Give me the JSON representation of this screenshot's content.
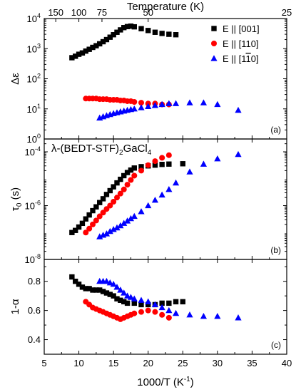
{
  "chart_data": {
    "type": "scatter",
    "x_axis": {
      "label_main": "1000/T (K",
      "label_sup": "-1",
      "label_end": ")",
      "range": [
        5,
        40
      ],
      "ticks": [
        5,
        10,
        15,
        20,
        25,
        30,
        35,
        40
      ],
      "tick_labels": [
        "5",
        "10",
        "15",
        "20",
        "25",
        "30",
        "35",
        "40"
      ]
    },
    "top_axis": {
      "label": "Temperature (K)",
      "ticks_T": [
        150,
        100,
        75,
        50,
        25
      ],
      "tick_labels": [
        "150",
        "100",
        "75",
        "50",
        "25"
      ]
    },
    "legend": {
      "placement": "top-right of panel (a)",
      "entries": [
        {
          "key": "s001",
          "prefix": "E || [001]",
          "suffix": ""
        },
        {
          "key": "s110",
          "prefix": "E || [110]",
          "suffix": ""
        },
        {
          "key": "s1m10",
          "prefix": "E || [1",
          "bar": "1",
          "suffix": "0]"
        }
      ]
    },
    "series_style": {
      "s001": {
        "color": "#000000",
        "marker": "square"
      },
      "s110": {
        "color": "#ff0000",
        "marker": "circle"
      },
      "s1m10": {
        "color": "#0000ff",
        "marker": "triangle"
      }
    },
    "panels": [
      {
        "id": "a",
        "panel_label": "(a)",
        "y_label": "Δε",
        "y_scale": "log",
        "y_range": [
          1,
          10000
        ],
        "y_ticks": [
          1,
          10,
          100,
          1000,
          10000
        ],
        "y_tick_labels": [
          {
            "b": "10",
            "e": "0"
          },
          {
            "b": "10",
            "e": "1"
          },
          {
            "b": "10",
            "e": "2"
          },
          {
            "b": "10",
            "e": "3"
          },
          {
            "b": "10",
            "e": "4"
          }
        ],
        "series": {
          "s001": {
            "x": [
              9,
              9.5,
              10,
              10.5,
              11,
              11.5,
              12,
              12.5,
              13,
              13.5,
              14,
              14.5,
              15,
              15.5,
              16,
              16.5,
              17,
              17.5,
              18,
              19,
              20,
              21,
              22,
              23,
              24
            ],
            "y": [
              500,
              560,
              650,
              720,
              830,
              950,
              1100,
              1250,
              1450,
              1700,
              2000,
              2400,
              2900,
              3500,
              4200,
              5000,
              5400,
              5600,
              5300,
              4600,
              4000,
              3500,
              3200,
              3000,
              2900
            ]
          },
          "s110": {
            "x": [
              11,
              11.5,
              12,
              12.5,
              13,
              13.5,
              14,
              14.5,
              15,
              15.5,
              16,
              16.5,
              17,
              17.5,
              18,
              19,
              20,
              21,
              22,
              23
            ],
            "y": [
              22,
              22,
              22,
              22,
              21,
              21,
              21,
              20,
              20,
              20,
              19,
              19,
              18,
              18,
              17,
              16,
              15,
              15,
              14,
              14
            ]
          },
          "s1m10": {
            "x": [
              13,
              13.5,
              14,
              14.5,
              15,
              15.5,
              16,
              16.5,
              17,
              17.5,
              18,
              19,
              20,
              21,
              22,
              23,
              24,
              26,
              28,
              30,
              33
            ],
            "y": [
              5,
              5.5,
              6,
              6.5,
              7,
              7.5,
              8,
              8.5,
              9,
              9.5,
              10,
              11,
              12,
              13,
              14,
              15,
              15,
              16,
              16,
              14,
              9
            ]
          }
        }
      },
      {
        "id": "b",
        "panel_label": "(b)",
        "compound": {
          "a": "λ-(BEDT-STF)",
          "b": "2",
          "c": "GaCl",
          "d": "4"
        },
        "y_label": "τ",
        "y_label_sub": "0",
        "y_label_end": " (s)",
        "y_scale": "log",
        "y_range": [
          1e-08,
          0.0003
        ],
        "y_ticks": [
          1e-08,
          1e-06,
          0.0001
        ],
        "y_tick_labels": [
          {
            "b": "10",
            "e": "-8"
          },
          {
            "b": "10",
            "e": "-6"
          },
          {
            "b": "10",
            "e": "-4"
          }
        ],
        "series": {
          "s001": {
            "x": [
              9,
              9.5,
              10,
              10.5,
              11,
              11.5,
              12,
              12.5,
              13,
              13.5,
              14,
              14.5,
              15,
              15.5,
              16,
              16.5,
              17,
              17.5,
              18,
              19,
              20,
              21,
              22,
              23,
              25
            ],
            "y": [
              1e-07,
              1.2e-07,
              1.6e-07,
              2.2e-07,
              3.2e-07,
              4.5e-07,
              6.5e-07,
              9e-07,
              1.3e-06,
              1.8e-06,
              2.6e-06,
              3.6e-06,
              5e-06,
              7e-06,
              9.5e-06,
              1.3e-05,
              1.7e-05,
              2.1e-05,
              2.5e-05,
              2.8e-05,
              3e-05,
              3.2e-05,
              3.4e-05,
              3.5e-05,
              3.6e-05
            ]
          },
          "s110": {
            "x": [
              11,
              11.5,
              12,
              12.5,
              13,
              13.5,
              14,
              14.5,
              15,
              15.5,
              16,
              16.5,
              17,
              17.5,
              18,
              19,
              20,
              21,
              22,
              23
            ],
            "y": [
              1e-07,
              1.4e-07,
              2e-07,
              2.8e-07,
              4e-07,
              5.5e-07,
              7.5e-07,
              1e-06,
              1.4e-06,
              2e-06,
              2.8e-06,
              4e-06,
              6e-06,
              9e-06,
              1.3e-05,
              2e-05,
              3.2e-05,
              4.5e-05,
              6e-05,
              7.5e-05
            ]
          },
          "s1m10": {
            "x": [
              13,
              13.5,
              14,
              14.5,
              15,
              15.5,
              16,
              16.5,
              17,
              17.5,
              18,
              19,
              20,
              21,
              22,
              23,
              24,
              26,
              28,
              30,
              33
            ],
            "y": [
              7e-08,
              8e-08,
              9e-08,
              1.1e-07,
              1.3e-07,
              1.5e-07,
              1.8e-07,
              2.2e-07,
              2.7e-07,
              3.3e-07,
              4e-07,
              6e-07,
              1e-06,
              1.6e-06,
              2.5e-06,
              4e-06,
              7e-06,
              1.8e-05,
              3.5e-05,
              5.5e-05,
              8e-05
            ]
          }
        }
      },
      {
        "id": "c",
        "panel_label": "(c)",
        "y_label": "1-α",
        "y_scale": "linear",
        "y_range": [
          0.3,
          0.95
        ],
        "y_ticks": [
          0.4,
          0.6,
          0.8
        ],
        "y_tick_labels": [
          "0.4",
          "0.6",
          "0.8"
        ],
        "series": {
          "s001": {
            "x": [
              9,
              9.5,
              10,
              10.5,
              11,
              11.5,
              12,
              12.5,
              13,
              13.5,
              14,
              14.5,
              15,
              15.5,
              16,
              16.5,
              17,
              18,
              19,
              20,
              21,
              22,
              23,
              24,
              25
            ],
            "y": [
              0.83,
              0.8,
              0.78,
              0.76,
              0.75,
              0.75,
              0.74,
              0.74,
              0.74,
              0.73,
              0.72,
              0.71,
              0.7,
              0.68,
              0.67,
              0.66,
              0.65,
              0.65,
              0.64,
              0.64,
              0.64,
              0.65,
              0.65,
              0.66,
              0.66
            ]
          },
          "s110": {
            "x": [
              11,
              11.5,
              12,
              12.5,
              13,
              13.5,
              14,
              14.5,
              15,
              15.5,
              16,
              16.5,
              17,
              17.5,
              18,
              19,
              20,
              21,
              22,
              23
            ],
            "y": [
              0.66,
              0.64,
              0.62,
              0.61,
              0.6,
              0.59,
              0.58,
              0.57,
              0.56,
              0.55,
              0.54,
              0.55,
              0.56,
              0.57,
              0.58,
              0.59,
              0.6,
              0.59,
              0.57,
              0.55
            ]
          },
          "s1m10": {
            "x": [
              13,
              13.5,
              14,
              14.5,
              15,
              15.5,
              16,
              16.5,
              17,
              17.5,
              18,
              19,
              20,
              21,
              22,
              23,
              24,
              26,
              28,
              30,
              33
            ],
            "y": [
              0.8,
              0.8,
              0.8,
              0.79,
              0.78,
              0.76,
              0.74,
              0.72,
              0.7,
              0.69,
              0.68,
              0.67,
              0.66,
              0.64,
              0.62,
              0.6,
              0.58,
              0.57,
              0.56,
              0.56,
              0.55
            ]
          }
        }
      }
    ]
  }
}
